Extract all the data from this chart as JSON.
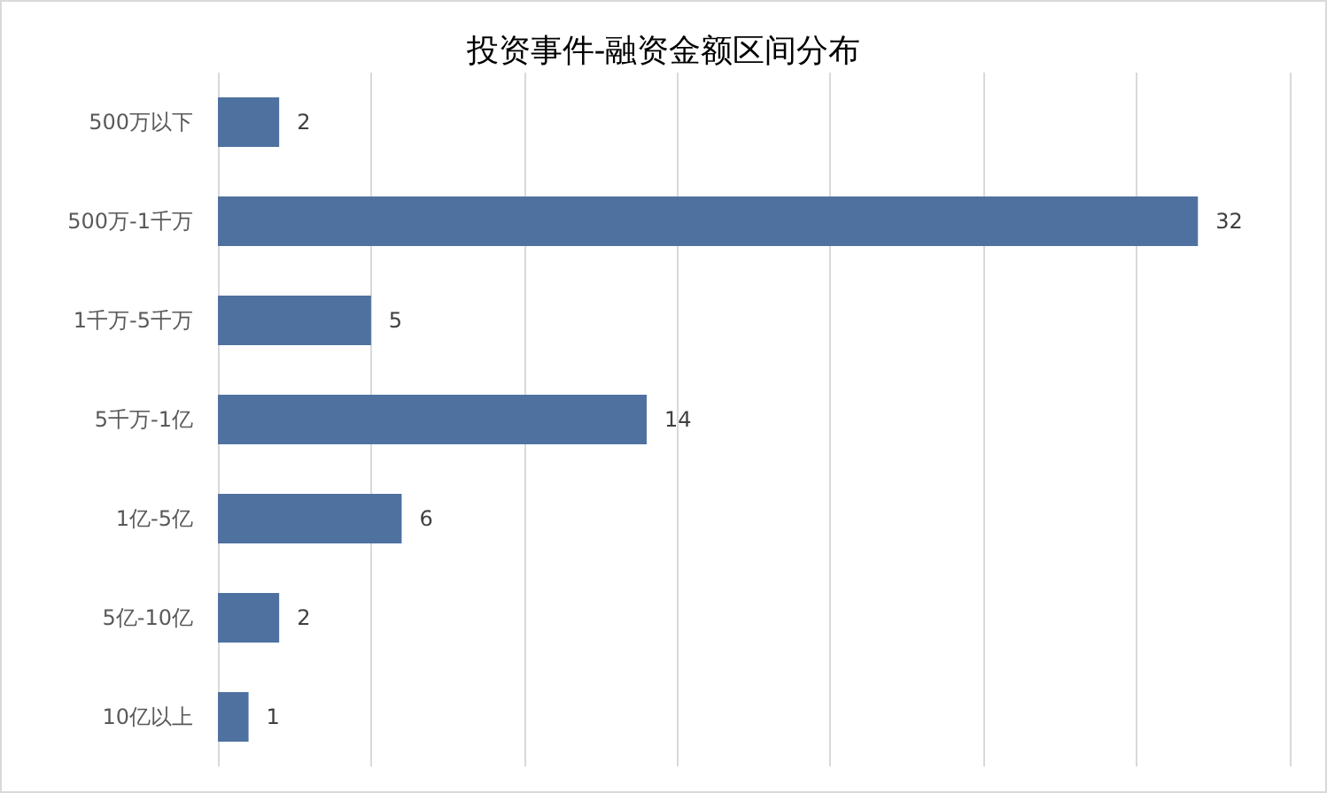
{
  "chart_data": {
    "type": "bar",
    "orientation": "horizontal",
    "title": "投资事件-融资金额区间分布",
    "categories": [
      "500万以下",
      "500万-1千万",
      "1千万-5千万",
      "5千万-1亿",
      "1亿-5亿",
      "5亿-10亿",
      "10亿以上"
    ],
    "values": [
      2,
      32,
      5,
      14,
      6,
      2,
      1
    ],
    "color": "#4e71a0",
    "xlim": [
      0,
      35
    ],
    "xticks": [
      {
        "value": 0,
        "label": null
      },
      {
        "value": 5,
        "label": null
      },
      {
        "value": 10,
        "label": null
      },
      {
        "value": 15,
        "label": null
      },
      {
        "value": 20,
        "label": null
      },
      {
        "value": 25,
        "label": null
      },
      {
        "value": 30,
        "label": null
      },
      {
        "value": 35,
        "label": null
      }
    ],
    "grid": "x",
    "tick_labels": "y",
    "data_labels": true
  }
}
